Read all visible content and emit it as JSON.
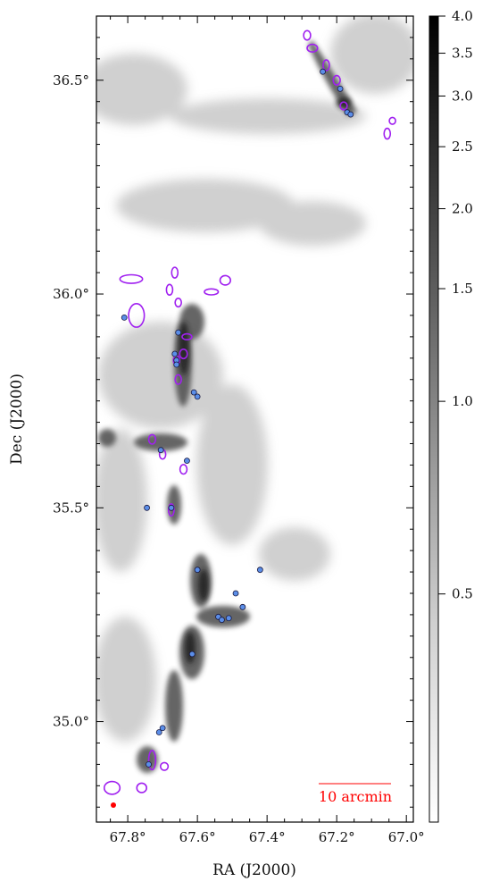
{
  "chart_data": {
    "type": "scatter",
    "title": "",
    "xlabel": "RA (J2000)",
    "ylabel": "Dec (J2000)",
    "xlim": [
      67.89,
      66.98
    ],
    "ylim": [
      34.765,
      36.65
    ],
    "x_ticks": [
      "67.8°",
      "67.6°",
      "67.4°",
      "67.2°",
      "67.0°"
    ],
    "x_tick_values": [
      67.8,
      67.6,
      67.4,
      67.2,
      67.0
    ],
    "y_ticks": [
      "35.0°",
      "35.5°",
      "36.0°",
      "36.5°"
    ],
    "y_tick_values": [
      35.0,
      35.5,
      36.0,
      36.5
    ],
    "colorbar": {
      "scale": "log",
      "cmap": "gray_r",
      "range": [
        0.22,
        4.0
      ],
      "ticks": [
        4.0,
        3.5,
        3.0,
        2.5,
        2.0,
        1.5,
        1.0,
        0.5
      ],
      "tick_labels": [
        "4.0",
        "3.5",
        "3.0",
        "2.5",
        "2.0",
        "1.5",
        "1.0",
        "0.5"
      ]
    },
    "scalebar_label": "10 arcmin",
    "beam_color": "#ff0000",
    "point_color": "#5b8ee8",
    "ellipse_color": "#a020f0",
    "points": [
      {
        "ra": 67.24,
        "dec": 36.52
      },
      {
        "ra": 67.19,
        "dec": 36.48
      },
      {
        "ra": 67.17,
        "dec": 36.425
      },
      {
        "ra": 67.16,
        "dec": 36.42
      },
      {
        "ra": 67.81,
        "dec": 35.945
      },
      {
        "ra": 67.655,
        "dec": 35.91
      },
      {
        "ra": 67.665,
        "dec": 35.86
      },
      {
        "ra": 67.66,
        "dec": 35.845
      },
      {
        "ra": 67.66,
        "dec": 35.835
      },
      {
        "ra": 67.61,
        "dec": 35.77
      },
      {
        "ra": 67.6,
        "dec": 35.76
      },
      {
        "ra": 67.705,
        "dec": 35.635
      },
      {
        "ra": 67.63,
        "dec": 35.61
      },
      {
        "ra": 67.745,
        "dec": 35.5
      },
      {
        "ra": 67.675,
        "dec": 35.5
      },
      {
        "ra": 67.6,
        "dec": 35.355
      },
      {
        "ra": 67.42,
        "dec": 35.355
      },
      {
        "ra": 67.49,
        "dec": 35.3
      },
      {
        "ra": 67.47,
        "dec": 35.268
      },
      {
        "ra": 67.54,
        "dec": 35.245
      },
      {
        "ra": 67.53,
        "dec": 35.238
      },
      {
        "ra": 67.51,
        "dec": 35.242
      },
      {
        "ra": 67.615,
        "dec": 35.158
      },
      {
        "ra": 67.7,
        "dec": 34.985
      },
      {
        "ra": 67.71,
        "dec": 34.975
      },
      {
        "ra": 67.74,
        "dec": 34.9
      }
    ],
    "ellipses": [
      {
        "ra": 67.285,
        "dec": 36.605,
        "w": 0.02,
        "h": 0.022
      },
      {
        "ra": 67.27,
        "dec": 36.575,
        "w": 0.03,
        "h": 0.018
      },
      {
        "ra": 67.23,
        "dec": 36.535,
        "w": 0.018,
        "h": 0.025
      },
      {
        "ra": 67.2,
        "dec": 36.5,
        "w": 0.02,
        "h": 0.022
      },
      {
        "ra": 67.18,
        "dec": 36.44,
        "w": 0.02,
        "h": 0.018
      },
      {
        "ra": 67.04,
        "dec": 36.405,
        "w": 0.018,
        "h": 0.016
      },
      {
        "ra": 67.055,
        "dec": 36.375,
        "w": 0.018,
        "h": 0.025
      },
      {
        "ra": 67.79,
        "dec": 36.035,
        "w": 0.065,
        "h": 0.02
      },
      {
        "ra": 67.775,
        "dec": 35.95,
        "w": 0.045,
        "h": 0.055
      },
      {
        "ra": 67.665,
        "dec": 36.05,
        "w": 0.018,
        "h": 0.025
      },
      {
        "ra": 67.68,
        "dec": 36.01,
        "w": 0.018,
        "h": 0.025
      },
      {
        "ra": 67.56,
        "dec": 36.005,
        "w": 0.04,
        "h": 0.014
      },
      {
        "ra": 67.52,
        "dec": 36.032,
        "w": 0.03,
        "h": 0.022
      },
      {
        "ra": 67.655,
        "dec": 35.98,
        "w": 0.018,
        "h": 0.02
      },
      {
        "ra": 67.63,
        "dec": 35.9,
        "w": 0.028,
        "h": 0.014
      },
      {
        "ra": 67.64,
        "dec": 35.86,
        "w": 0.022,
        "h": 0.022
      },
      {
        "ra": 67.66,
        "dec": 35.845,
        "w": 0.018,
        "h": 0.022
      },
      {
        "ra": 67.655,
        "dec": 35.8,
        "w": 0.018,
        "h": 0.022
      },
      {
        "ra": 67.73,
        "dec": 35.66,
        "w": 0.02,
        "h": 0.022
      },
      {
        "ra": 67.7,
        "dec": 35.625,
        "w": 0.018,
        "h": 0.022
      },
      {
        "ra": 67.64,
        "dec": 35.59,
        "w": 0.02,
        "h": 0.022
      },
      {
        "ra": 67.675,
        "dec": 35.495,
        "w": 0.016,
        "h": 0.028
      },
      {
        "ra": 67.73,
        "dec": 34.91,
        "w": 0.02,
        "h": 0.045
      },
      {
        "ra": 67.695,
        "dec": 34.895,
        "w": 0.022,
        "h": 0.018
      },
      {
        "ra": 67.845,
        "dec": 34.845,
        "w": 0.045,
        "h": 0.03
      },
      {
        "ra": 67.76,
        "dec": 34.845,
        "w": 0.028,
        "h": 0.022
      }
    ]
  }
}
